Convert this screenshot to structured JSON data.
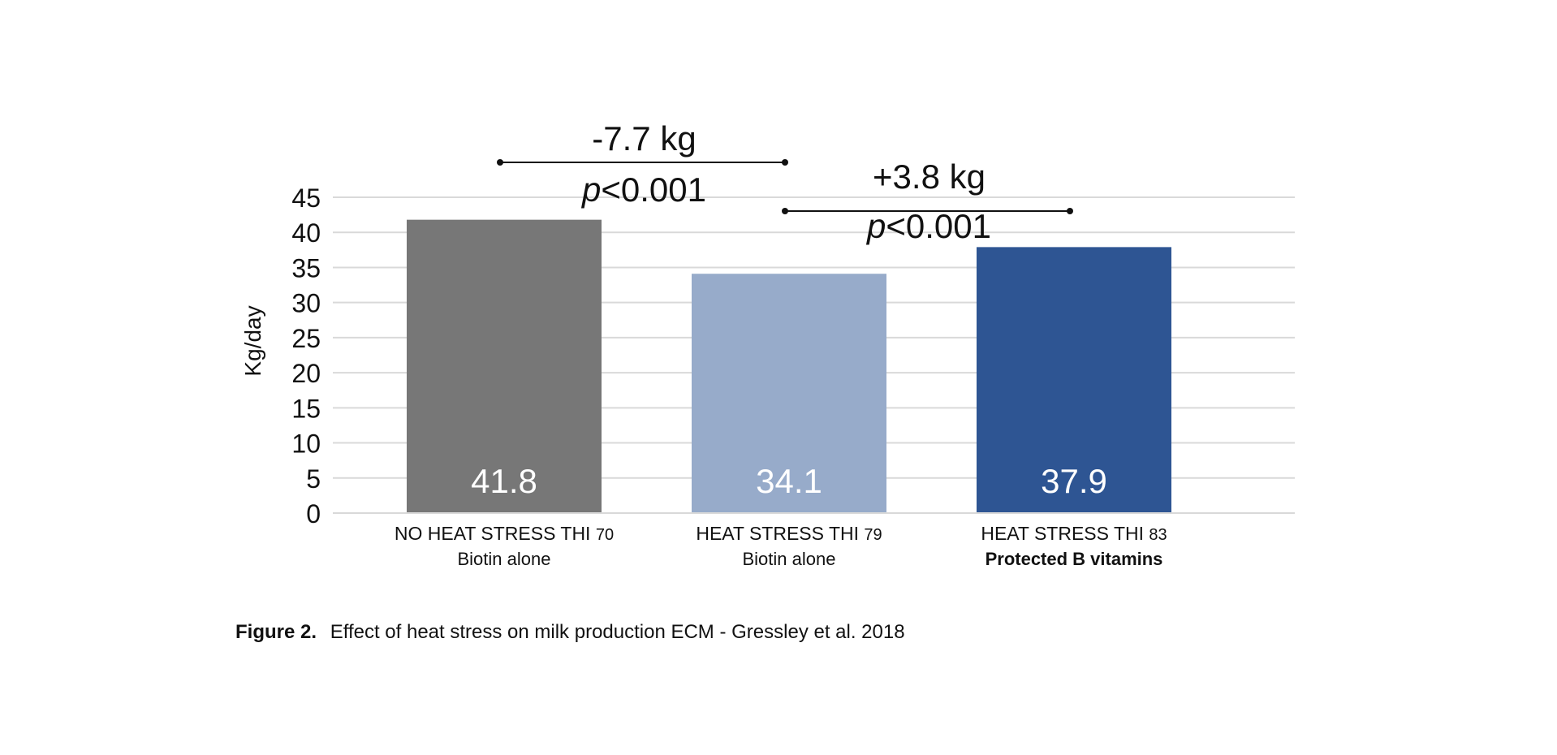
{
  "chart_data": {
    "type": "bar",
    "categories": [
      {
        "line1": "NO HEAT STRESS THI",
        "thi": "70",
        "line2": "Biotin alone",
        "line2_bold": false
      },
      {
        "line1": "HEAT STRESS THI",
        "thi": "79",
        "line2": "Biotin alone",
        "line2_bold": false
      },
      {
        "line1": "HEAT STRESS THI",
        "thi": "83",
        "line2": "Protected B vitamins",
        "line2_bold": true
      }
    ],
    "values": [
      41.8,
      34.1,
      37.9
    ],
    "value_labels": [
      "41.8",
      "34.1",
      "37.9"
    ],
    "colors": [
      "#777777",
      "#97abca",
      "#2e5593"
    ],
    "ylabel": "Kg/day",
    "ylim": [
      0,
      45
    ],
    "yticks": [
      0,
      5,
      10,
      15,
      20,
      25,
      30,
      35,
      40,
      45
    ],
    "grid": true,
    "grid_color": "#d9d9d9",
    "annotations": [
      {
        "from": 0,
        "to": 1,
        "diff": "-7.7 kg",
        "p_italic": "p",
        "p_rest": "<0.001"
      },
      {
        "from": 1,
        "to": 2,
        "diff": "+3.8 kg",
        "p_italic": "p",
        "p_rest": "<0.001"
      }
    ]
  },
  "caption": {
    "label": "Figure 2.",
    "text": "Effect of heat stress on milk production ECM - Gressley et al. 2018"
  }
}
